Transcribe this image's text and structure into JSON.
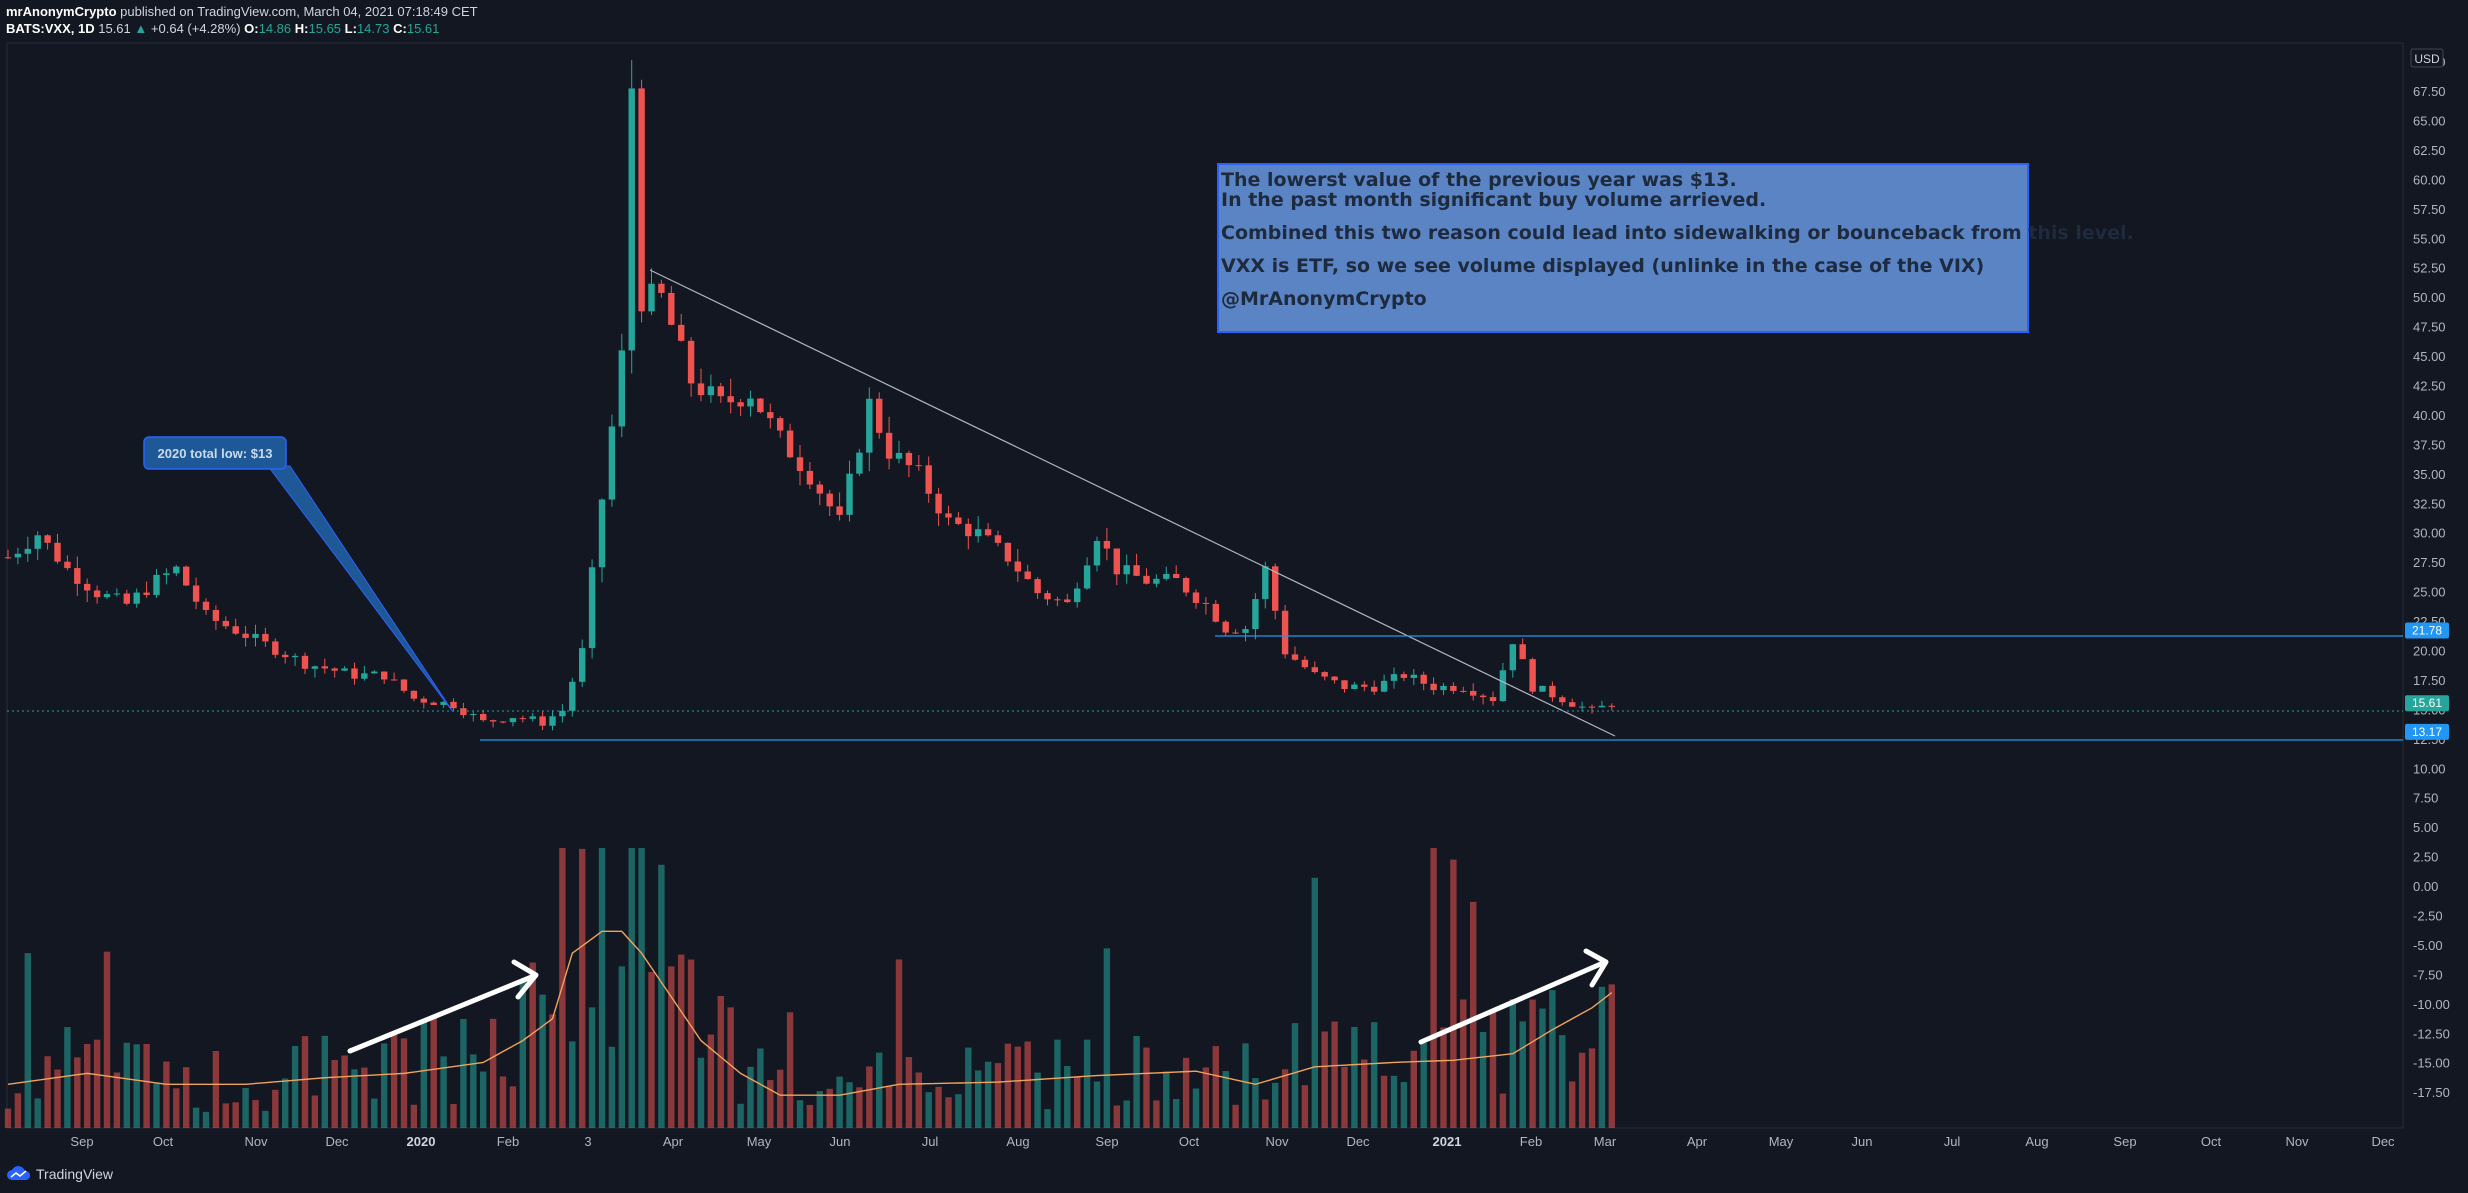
{
  "header": {
    "author": "mrAnonymCrypto",
    "published_text": "published on TradingView.com, March 04, 2021 07:18:49 CET",
    "symbol": "BATS:VXX, 1D",
    "last": "15.61",
    "change": "+0.64 (+4.28%)",
    "o_label": "O:",
    "o_val": "14.86",
    "h_label": "H:",
    "h_val": "15.65",
    "l_label": "L:",
    "l_val": "14.73",
    "c_label": "C:",
    "c_val": "15.61"
  },
  "branding": {
    "logo_text": "TradingView",
    "icon": "tradingview-cloud-icon"
  },
  "colors": {
    "background": "#131722",
    "up": "#26a69a",
    "down": "#ef5350",
    "line": "#2962ff",
    "note_bg": "#5b84c4"
  },
  "note": {
    "lines": [
      "The lowerst value of the previous year was $13.",
      "In the past month significant buy volume arrieved.",
      "",
      "Combined this two reason could lead into sidewalking or bounceback from this level.",
      "",
      "VXX is ETF, so we see volume displayed (unlinke in the case of the VIX)",
      "",
      "@MrAnonymCrypto"
    ]
  },
  "callout": {
    "text": "2020 total low: $13"
  },
  "chart_data": {
    "type": "candlestick",
    "x_axis_labels": [
      "Sep",
      "Oct",
      "Nov",
      "Dec",
      "2020",
      "Feb",
      "3",
      "Apr",
      "May",
      "Jun",
      "Jul",
      "Aug",
      "Sep",
      "Oct",
      "Nov",
      "Dec",
      "2021",
      "Feb",
      "Mar",
      "Apr",
      "May",
      "Jun",
      "Jul",
      "Aug",
      "Sep",
      "Oct",
      "Nov",
      "Dec"
    ],
    "y_currency": "USD",
    "y_ticks": [
      "70.00",
      "67.50",
      "65.00",
      "62.50",
      "60.00",
      "57.50",
      "55.00",
      "52.50",
      "50.00",
      "47.50",
      "45.00",
      "42.50",
      "40.00",
      "37.50",
      "35.00",
      "32.50",
      "30.00",
      "27.50",
      "25.00",
      "22.50",
      "20.00",
      "17.50",
      "15.00",
      "12.50",
      "10.00",
      "7.50",
      "5.00",
      "2.50",
      "0.00",
      "-2.50",
      "-5.00",
      "-7.50",
      "-10.00",
      "-12.50",
      "-15.00",
      "-17.50"
    ],
    "ylim": [
      -19.1,
      70.9
    ],
    "price_markers": [
      {
        "label": "21.78",
        "value": 21.78,
        "color": "#2196f3"
      },
      {
        "label": "15.61",
        "value": 15.61,
        "color": "#26a69a"
      },
      {
        "label": "13.17",
        "value": 13.17,
        "color": "#2196f3"
      }
    ],
    "price_series": [
      {
        "x": 0,
        "close": 28
      },
      {
        "x": 3,
        "close": 30
      },
      {
        "x": 6,
        "close": 27
      },
      {
        "x": 9,
        "close": 25
      },
      {
        "x": 12,
        "close": 24
      },
      {
        "x": 15,
        "close": 26
      },
      {
        "x": 17,
        "close": 27
      },
      {
        "x": 20,
        "close": 23
      },
      {
        "x": 25,
        "close": 21
      },
      {
        "x": 30,
        "close": 19
      },
      {
        "x": 35,
        "close": 18
      },
      {
        "x": 38,
        "close": 18
      },
      {
        "x": 41,
        "close": 16
      },
      {
        "x": 45,
        "close": 15.5
      },
      {
        "x": 48,
        "close": 14
      },
      {
        "x": 51,
        "close": 14.5
      },
      {
        "x": 54,
        "close": 14
      },
      {
        "x": 56,
        "close": 15
      },
      {
        "x": 58,
        "close": 20
      },
      {
        "x": 60,
        "close": 33
      },
      {
        "x": 62,
        "close": 45
      },
      {
        "x": 63,
        "close": 68
      },
      {
        "x": 64,
        "close": 50
      },
      {
        "x": 66,
        "close": 50
      },
      {
        "x": 69,
        "close": 43
      },
      {
        "x": 72,
        "close": 41
      },
      {
        "x": 75,
        "close": 42
      },
      {
        "x": 78,
        "close": 38
      },
      {
        "x": 81,
        "close": 35
      },
      {
        "x": 84,
        "close": 31
      },
      {
        "x": 87,
        "close": 41
      },
      {
        "x": 89,
        "close": 37
      },
      {
        "x": 92,
        "close": 35
      },
      {
        "x": 95,
        "close": 31
      },
      {
        "x": 98,
        "close": 30
      },
      {
        "x": 101,
        "close": 28
      },
      {
        "x": 104,
        "close": 25
      },
      {
        "x": 107,
        "close": 24
      },
      {
        "x": 110,
        "close": 30
      },
      {
        "x": 112,
        "close": 27
      },
      {
        "x": 115,
        "close": 26
      },
      {
        "x": 118,
        "close": 26
      },
      {
        "x": 121,
        "close": 24
      },
      {
        "x": 123,
        "close": 22
      },
      {
        "x": 125,
        "close": 22
      },
      {
        "x": 127,
        "close": 27
      },
      {
        "x": 129,
        "close": 20
      },
      {
        "x": 132,
        "close": 18
      },
      {
        "x": 135,
        "close": 17
      },
      {
        "x": 138,
        "close": 17
      },
      {
        "x": 141,
        "close": 18
      },
      {
        "x": 144,
        "close": 17
      },
      {
        "x": 147,
        "close": 17
      },
      {
        "x": 150,
        "close": 16
      },
      {
        "x": 152,
        "close": 21
      },
      {
        "x": 154,
        "close": 17
      },
      {
        "x": 157,
        "close": 16
      },
      {
        "x": 160,
        "close": 14.9
      },
      {
        "x": 162,
        "close": 15.61
      }
    ],
    "volume_series": [
      {
        "x": 0,
        "v": 2
      },
      {
        "x": 8,
        "v": 2.5
      },
      {
        "x": 16,
        "v": 2
      },
      {
        "x": 24,
        "v": 2
      },
      {
        "x": 32,
        "v": 2.3
      },
      {
        "x": 40,
        "v": 2.5
      },
      {
        "x": 48,
        "v": 3
      },
      {
        "x": 52,
        "v": 4
      },
      {
        "x": 55,
        "v": 5
      },
      {
        "x": 57,
        "v": 8
      },
      {
        "x": 60,
        "v": 9
      },
      {
        "x": 62,
        "v": 9
      },
      {
        "x": 64,
        "v": 8
      },
      {
        "x": 67,
        "v": 6
      },
      {
        "x": 70,
        "v": 4
      },
      {
        "x": 74,
        "v": 2.5
      },
      {
        "x": 78,
        "v": 1.5
      },
      {
        "x": 84,
        "v": 1.5
      },
      {
        "x": 90,
        "v": 2
      },
      {
        "x": 100,
        "v": 2.1
      },
      {
        "x": 110,
        "v": 2.4
      },
      {
        "x": 120,
        "v": 2.6
      },
      {
        "x": 126,
        "v": 2
      },
      {
        "x": 132,
        "v": 2.8
      },
      {
        "x": 140,
        "v": 3
      },
      {
        "x": 146,
        "v": 3.1
      },
      {
        "x": 152,
        "v": 3.4
      },
      {
        "x": 156,
        "v": 4.5
      },
      {
        "x": 160,
        "v": 5.5
      },
      {
        "x": 162,
        "v": 6.2
      }
    ]
  }
}
